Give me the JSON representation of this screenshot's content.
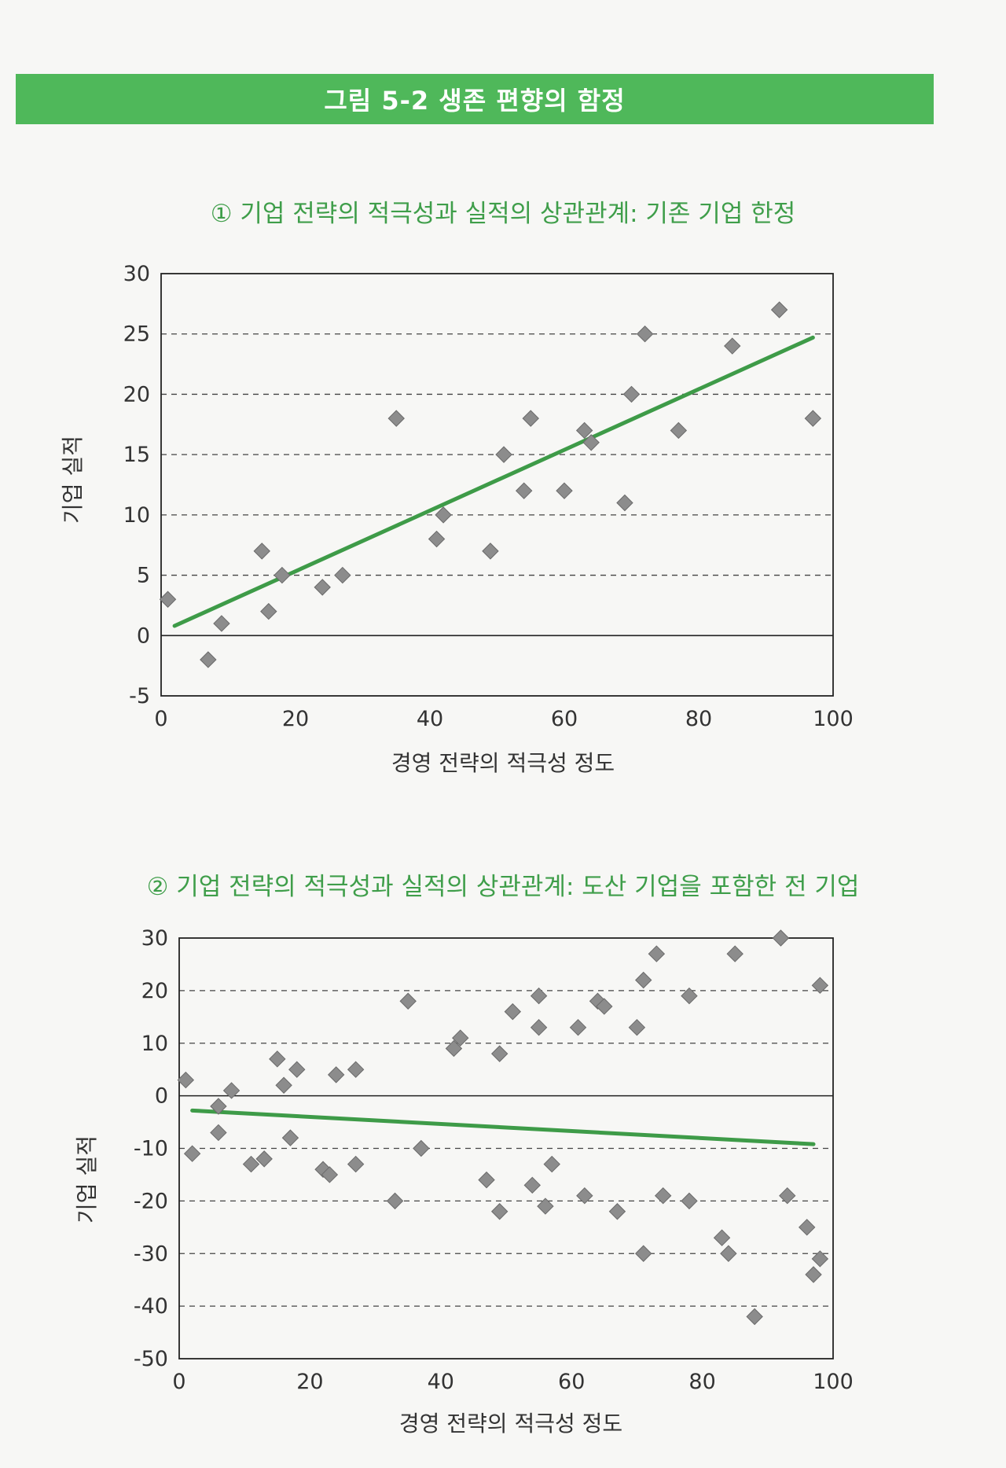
{
  "banner": {
    "title": "그림 5-2 생존 편향의 함정"
  },
  "colors": {
    "banner": "#4fb85a",
    "title": "#3f9e4a",
    "trend": "#3e9b48",
    "point": "#8c8c8c"
  },
  "charts": [
    {
      "title": "① 기업 전략의 적극성과 실적의 상관관계: 기존 기업 한정",
      "xlabel": "경영 전략의 적극성 정도",
      "ylabel": "기업 실적"
    },
    {
      "title": "② 기업 전략의 적극성과 실적의 상관관계: 도산 기업을 포함한 전 기업",
      "xlabel": "경영 전략의 적극성 정도",
      "ylabel": "기업 실적"
    }
  ],
  "chart_data": [
    {
      "type": "scatter",
      "title": "① 기업 전략의 적극성과 실적의 상관관계: 기존 기업 한정",
      "xlabel": "경영 전략의 적극성 정도",
      "ylabel": "기업 실적",
      "xlim": [
        0,
        100
      ],
      "ylim": [
        -5,
        30
      ],
      "xticks": [
        0,
        20,
        40,
        60,
        80,
        100
      ],
      "yticks": [
        -5,
        0,
        5,
        10,
        15,
        20,
        25,
        30
      ],
      "grid": "dashed horizontal",
      "points": [
        [
          1,
          3
        ],
        [
          7,
          -2
        ],
        [
          9,
          1
        ],
        [
          15,
          7
        ],
        [
          16,
          2
        ],
        [
          18,
          5
        ],
        [
          24,
          4
        ],
        [
          27,
          5
        ],
        [
          35,
          18
        ],
        [
          41,
          8
        ],
        [
          42,
          10
        ],
        [
          49,
          7
        ],
        [
          51,
          15
        ],
        [
          54,
          12
        ],
        [
          55,
          18
        ],
        [
          60,
          12
        ],
        [
          63,
          17
        ],
        [
          64,
          16
        ],
        [
          69,
          11
        ],
        [
          70,
          20
        ],
        [
          72,
          25
        ],
        [
          77,
          17
        ],
        [
          85,
          24
        ],
        [
          92,
          27
        ],
        [
          97,
          18
        ]
      ],
      "trendline": {
        "x": [
          2,
          97
        ],
        "y": [
          0.8,
          24.7
        ]
      }
    },
    {
      "type": "scatter",
      "title": "② 기업 전략의 적극성과 실적의 상관관계: 도산 기업을 포함한 전 기업",
      "xlabel": "경영 전략의 적극성 정도",
      "ylabel": "기업 실적",
      "xlim": [
        0,
        100
      ],
      "ylim": [
        -50,
        30
      ],
      "xticks": [
        0,
        20,
        40,
        60,
        80,
        100
      ],
      "yticks": [
        -50,
        -40,
        -30,
        -20,
        -10,
        0,
        10,
        20,
        30
      ],
      "grid": "dashed horizontal",
      "points": [
        [
          1,
          3
        ],
        [
          2,
          -11
        ],
        [
          6,
          -2
        ],
        [
          6,
          -7
        ],
        [
          8,
          1
        ],
        [
          11,
          -13
        ],
        [
          13,
          -12
        ],
        [
          15,
          7
        ],
        [
          16,
          2
        ],
        [
          17,
          -8
        ],
        [
          18,
          5
        ],
        [
          22,
          -14
        ],
        [
          23,
          -15
        ],
        [
          24,
          4
        ],
        [
          27,
          5
        ],
        [
          27,
          -13
        ],
        [
          33,
          -20
        ],
        [
          35,
          18
        ],
        [
          37,
          -10
        ],
        [
          42,
          9
        ],
        [
          43,
          11
        ],
        [
          47,
          -16
        ],
        [
          49,
          8
        ],
        [
          49,
          -22
        ],
        [
          51,
          16
        ],
        [
          54,
          -17
        ],
        [
          55,
          13
        ],
        [
          55,
          19
        ],
        [
          56,
          -21
        ],
        [
          57,
          -13
        ],
        [
          61,
          13
        ],
        [
          62,
          -19
        ],
        [
          64,
          18
        ],
        [
          65,
          17
        ],
        [
          67,
          -22
        ],
        [
          70,
          13
        ],
        [
          71,
          22
        ],
        [
          71,
          -30
        ],
        [
          73,
          27
        ],
        [
          74,
          -19
        ],
        [
          78,
          -20
        ],
        [
          78,
          19
        ],
        [
          83,
          -27
        ],
        [
          84,
          -30
        ],
        [
          85,
          27
        ],
        [
          88,
          -42
        ],
        [
          92,
          30
        ],
        [
          93,
          -19
        ],
        [
          96,
          -25
        ],
        [
          97,
          -34
        ],
        [
          98,
          21
        ],
        [
          98,
          -31
        ]
      ],
      "trendline": {
        "x": [
          2,
          97
        ],
        "y": [
          -2.8,
          -9.2
        ]
      }
    }
  ]
}
